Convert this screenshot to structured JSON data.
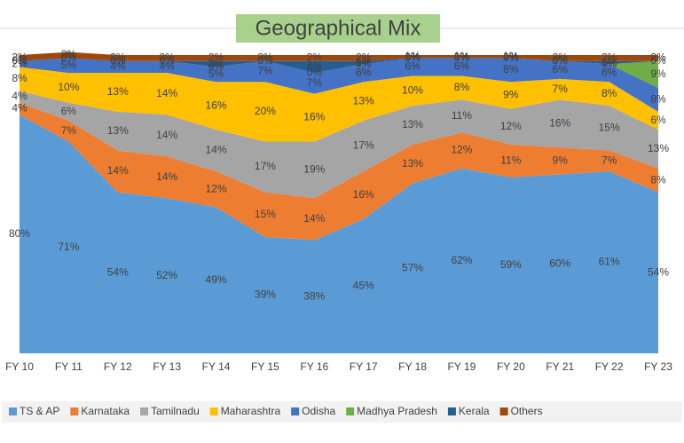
{
  "chart_data": {
    "type": "stacked_area",
    "title": "Geographical Mix",
    "categories": [
      "FY 10",
      "FY 11",
      "FY 12",
      "FY 13",
      "FY 14",
      "FY 15",
      "FY 16",
      "FY 17",
      "FY 18",
      "FY 19",
      "FY 20",
      "FY 21",
      "FY 22",
      "FY 23"
    ],
    "ylim": [
      0,
      100
    ],
    "series": [
      {
        "name": "TS & AP",
        "color": "#5b9bd5",
        "values": [
          80,
          71,
          54,
          52,
          49,
          39,
          38,
          45,
          57,
          62,
          59,
          60,
          61,
          54
        ],
        "value_labels": [
          "80%",
          "71%",
          "54%",
          "52%",
          "49%",
          "39%",
          "38%",
          "45%",
          "57%",
          "62%",
          "59%",
          "60%",
          "61%",
          "54%"
        ]
      },
      {
        "name": "Karnataka",
        "color": "#ed7d31",
        "values": [
          4,
          7,
          14,
          14,
          12,
          15,
          14,
          16,
          13,
          12,
          11,
          9,
          7,
          8
        ],
        "value_labels": [
          "4%",
          "7%",
          "14%",
          "14%",
          "12%",
          "15%",
          "14%",
          "16%",
          "13%",
          "12%",
          "11%",
          "9%",
          "7%",
          "8%"
        ]
      },
      {
        "name": "Tamilnadu",
        "color": "#a5a5a5",
        "values": [
          4,
          6,
          13,
          14,
          14,
          17,
          19,
          17,
          13,
          11,
          12,
          16,
          15,
          13
        ],
        "value_labels": [
          "4%",
          "6%",
          "13%",
          "14%",
          "14%",
          "17%",
          "19%",
          "17%",
          "13%",
          "11%",
          "12%",
          "16%",
          "15%",
          "13%"
        ]
      },
      {
        "name": "Maharashtra",
        "color": "#ffc000",
        "values": [
          8,
          10,
          13,
          14,
          16,
          20,
          16,
          13,
          10,
          8,
          9,
          7,
          8,
          6
        ],
        "value_labels": [
          "8%",
          "10%",
          "13%",
          "14%",
          "16%",
          "20%",
          "16%",
          "13%",
          "10%",
          "8%",
          "9%",
          "7%",
          "8%",
          "6%"
        ]
      },
      {
        "name": "Odisha",
        "color": "#4472c4",
        "values": [
          2,
          5,
          4,
          4,
          5,
          7,
          7,
          6,
          6,
          6,
          8,
          6,
          6,
          8
        ],
        "value_labels": [
          "2%",
          "5%",
          "4%",
          "4%",
          "5%",
          "7%",
          "7%",
          "6%",
          "6%",
          "6%",
          "8%",
          "6%",
          "6%",
          "8%"
        ]
      },
      {
        "name": "Madhya Pradesh",
        "color": "#70ad47",
        "values": [
          0,
          0,
          0,
          0,
          0,
          0,
          0,
          0,
          0,
          0,
          0,
          0,
          0,
          9
        ],
        "value_labels": [
          "0%",
          "0%",
          "0%",
          "0%",
          "0%",
          "0%",
          "0%",
          "0%",
          "0%",
          "0%",
          "0%",
          "0%",
          "0%",
          "9%"
        ]
      },
      {
        "name": "Kerala",
        "color": "#255e91",
        "values": [
          0,
          0,
          0,
          0,
          2,
          0,
          4,
          1,
          0,
          0,
          0,
          0,
          1,
          0
        ],
        "value_labels": [
          "0%",
          "0%",
          "0%",
          "0%",
          "2%",
          "0%",
          "4%",
          "1%",
          "0%",
          "0%",
          "0%",
          "0%",
          "1%",
          "0%"
        ]
      },
      {
        "name": "Others",
        "color": "#9e480e",
        "values": [
          2,
          2,
          2,
          2,
          2,
          2,
          2,
          2,
          1,
          1,
          1,
          2,
          2,
          2
        ],
        "value_labels": [
          "2%",
          "2%",
          "2%",
          "2%",
          "2%",
          "2%",
          "2%",
          "2%",
          "1%",
          "1%",
          "1%",
          "2%",
          "2%",
          "2%"
        ]
      }
    ]
  }
}
